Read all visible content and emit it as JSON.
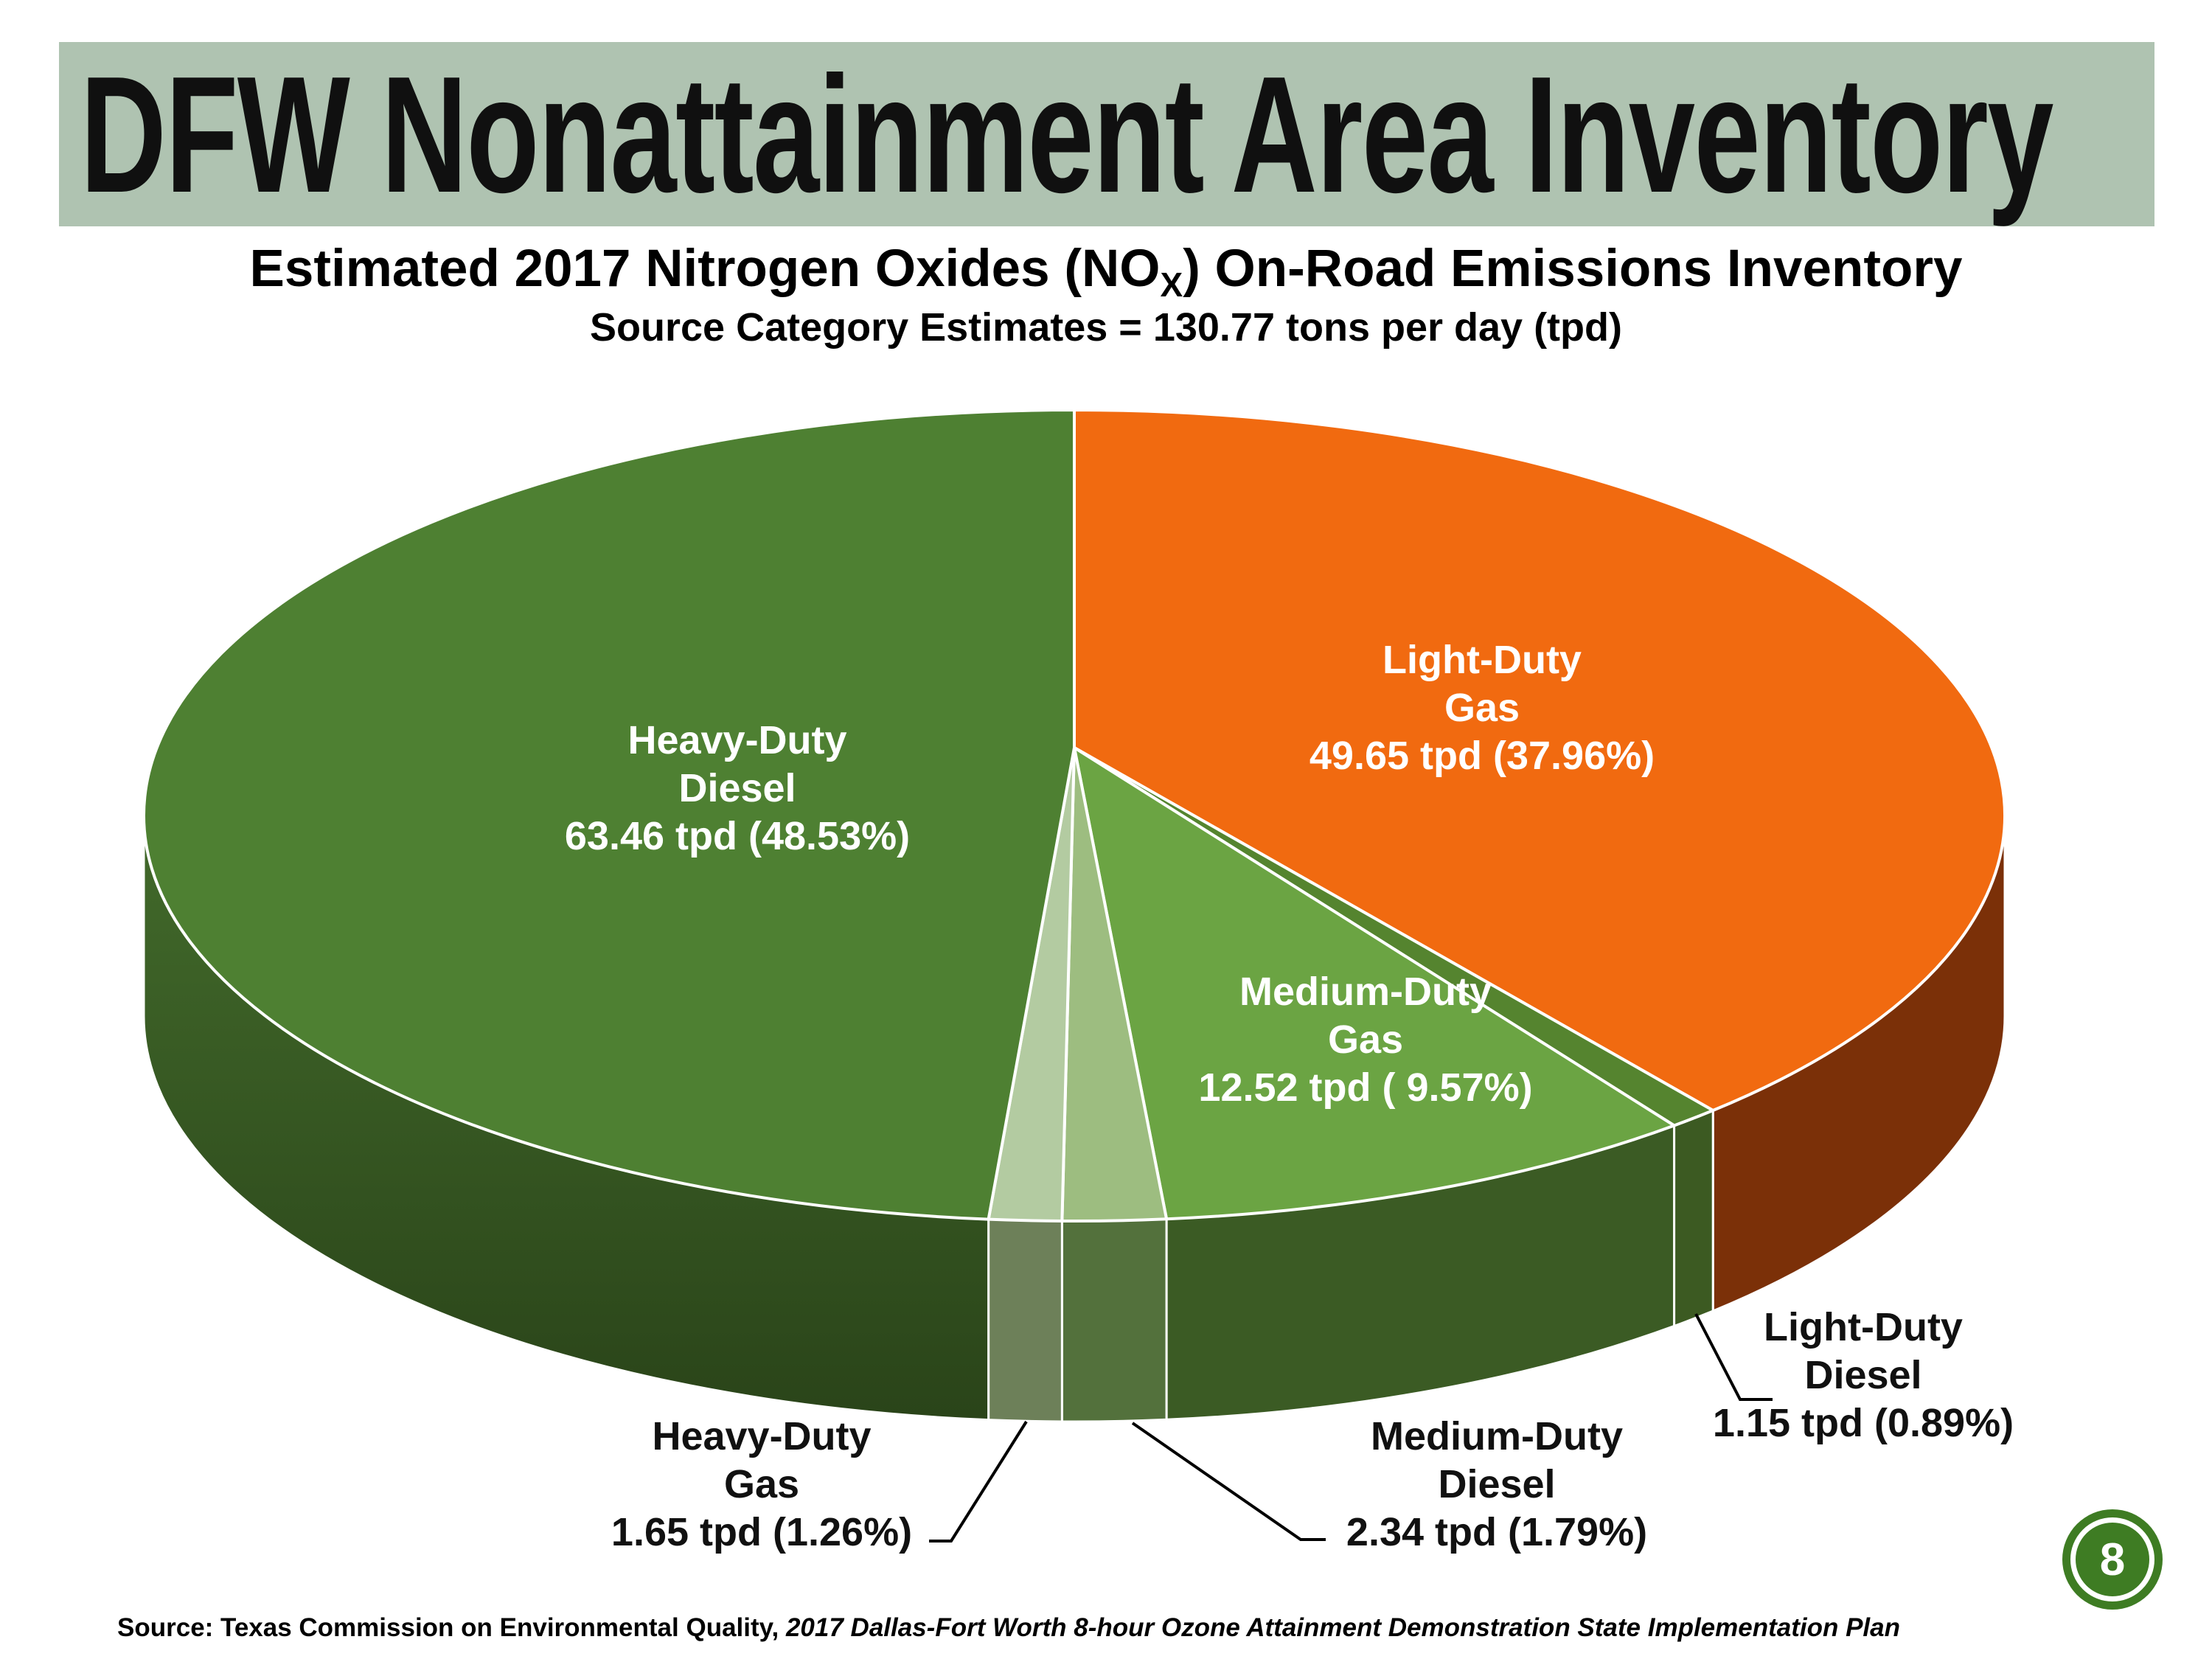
{
  "slide": {
    "title": "DFW Nonattainment Area Inventory",
    "subtitle_pre": "Estimated 2017 Nitrogen Oxides (NO",
    "subtitle_sub": "X",
    "subtitle_post": ") On-Road Emissions Inventory",
    "subtitle2": "Source Category Estimates = 130.77 tons per day (tpd)",
    "page_number": "8",
    "source_label": "Source:  Texas Commission on Environmental Quality, ",
    "source_citation": "2017 Dallas-Fort Worth 8-hour Ozone Attainment Demonstration State Implementation Plan",
    "colors": {
      "banner_background": "#afc3b1",
      "badge_green": "#3e7c23",
      "leader_line": "#000000"
    }
  },
  "chart_data": {
    "type": "pie",
    "style": "3d-pie",
    "title": "Estimated 2017 Nitrogen Oxides (NOx) On-Road Emissions Inventory",
    "subtitle": "Source Category Estimates = 130.77 tons per day (tpd)",
    "total": 130.77,
    "units": "tons per day (tpd)",
    "start_angle_deg": 0,
    "direction": "clockwise",
    "slices": [
      {
        "id": "light_duty_gas",
        "name": "Light-Duty Gas",
        "tpd": 49.65,
        "pct": 37.96,
        "top_color": "#f16a10",
        "side_color": "#7b3008",
        "label_color": "#ffffff",
        "inside": true,
        "label_lines": [
          "Light-Duty",
          "Gas",
          "49.65 tpd (37.96%)"
        ]
      },
      {
        "id": "light_duty_diesel",
        "name": "Light-Duty Diesel",
        "tpd": 1.15,
        "pct": 0.89,
        "top_color": "#55842f",
        "side_color": "#3c5a22",
        "label_color": "#111111",
        "inside": false,
        "label_lines": [
          "Light-Duty",
          "Diesel",
          "1.15 tpd (0.89%)"
        ]
      },
      {
        "id": "medium_duty_gas",
        "name": "Medium-Duty Gas",
        "tpd": 12.52,
        "pct": 9.57,
        "top_color": "#6ba443",
        "side_color": "#3b5b24",
        "label_color": "#ffffff",
        "inside": true,
        "label_lines": [
          "Medium-Duty",
          "Gas",
          "12.52 tpd ( 9.57%)"
        ]
      },
      {
        "id": "medium_duty_diesel",
        "name": "Medium-Duty Diesel",
        "tpd": 2.34,
        "pct": 1.79,
        "top_color": "#9dbd80",
        "side_color": "#53713c",
        "label_color": "#111111",
        "inside": false,
        "label_lines": [
          "Medium-Duty",
          "Diesel",
          "2.34 tpd (1.79%)"
        ]
      },
      {
        "id": "heavy_duty_gas",
        "name": "Heavy-Duty Gas",
        "tpd": 1.65,
        "pct": 1.26,
        "top_color": "#b3cba1",
        "side_color": "#6d8059",
        "label_color": "#111111",
        "inside": false,
        "label_lines": [
          "Heavy-Duty",
          "Gas",
          "1.65 tpd (1.26%)"
        ]
      },
      {
        "id": "heavy_duty_diesel",
        "name": "Heavy-Duty Diesel",
        "tpd": 63.46,
        "pct": 48.53,
        "top_color": "#4e8032",
        "side_color": "#426a2b",
        "side_color2": "#2a4419",
        "label_color": "#ffffff",
        "inside": true,
        "label_lines": [
          "Heavy-Duty",
          "Diesel",
          "63.46 tpd (48.53%)"
        ]
      }
    ]
  }
}
